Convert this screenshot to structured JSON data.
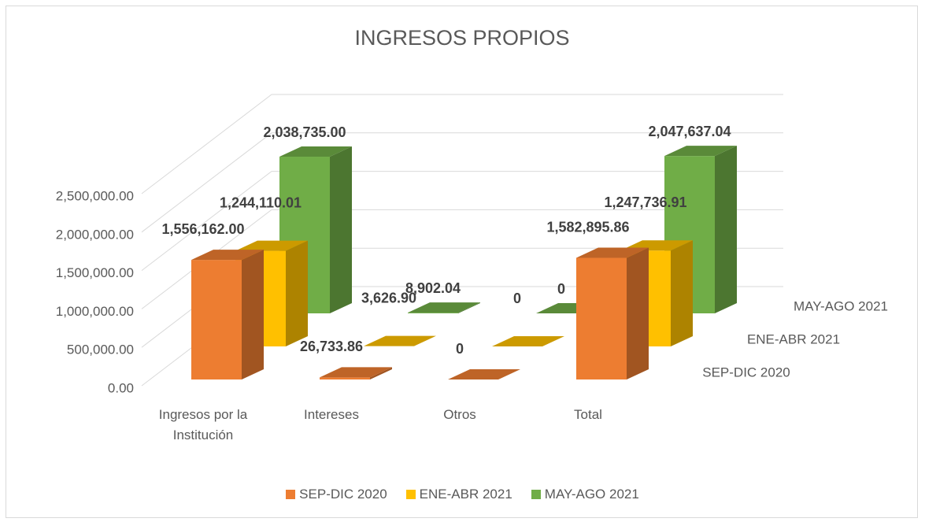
{
  "chart_data": {
    "type": "bar3d",
    "title": "INGRESOS PROPIOS",
    "categories": [
      "Ingresos por la Institución",
      "Intereses",
      "Otros",
      "Total"
    ],
    "series": [
      {
        "name": "SEP-DIC 2020",
        "color": "#ed7d31",
        "values": [
          1556162.0,
          26733.86,
          0,
          1582895.86
        ],
        "value_labels": [
          "1,556,162.00",
          "26,733.86",
          "0",
          "1,582,895.86"
        ]
      },
      {
        "name": "ENE-ABR 2021",
        "color": "#ffc000",
        "values": [
          1244110.01,
          3626.9,
          0,
          1247736.91
        ],
        "value_labels": [
          "1,244,110.01",
          "3,626.90",
          "0",
          "1,247,736.91"
        ]
      },
      {
        "name": "MAY-AGO 2021",
        "color": "#70ad47",
        "values": [
          2038735.0,
          8902.04,
          0,
          2047637.04
        ],
        "value_labels": [
          "2,038,735.00",
          "8,902.04",
          "0",
          "2,047,637.04"
        ]
      }
    ],
    "ylim": [
      0,
      2500000
    ],
    "yticks": [
      {
        "value": 0,
        "label": "0.00"
      },
      {
        "value": 500000,
        "label": "500,000.00"
      },
      {
        "value": 1000000,
        "label": "1,000,000.00"
      },
      {
        "value": 1500000,
        "label": "1,500,000.00"
      },
      {
        "value": 2000000,
        "label": "2,000,000.00"
      },
      {
        "value": 2500000,
        "label": "2,500,000.00"
      }
    ],
    "grid": true,
    "legend": "bottom"
  }
}
